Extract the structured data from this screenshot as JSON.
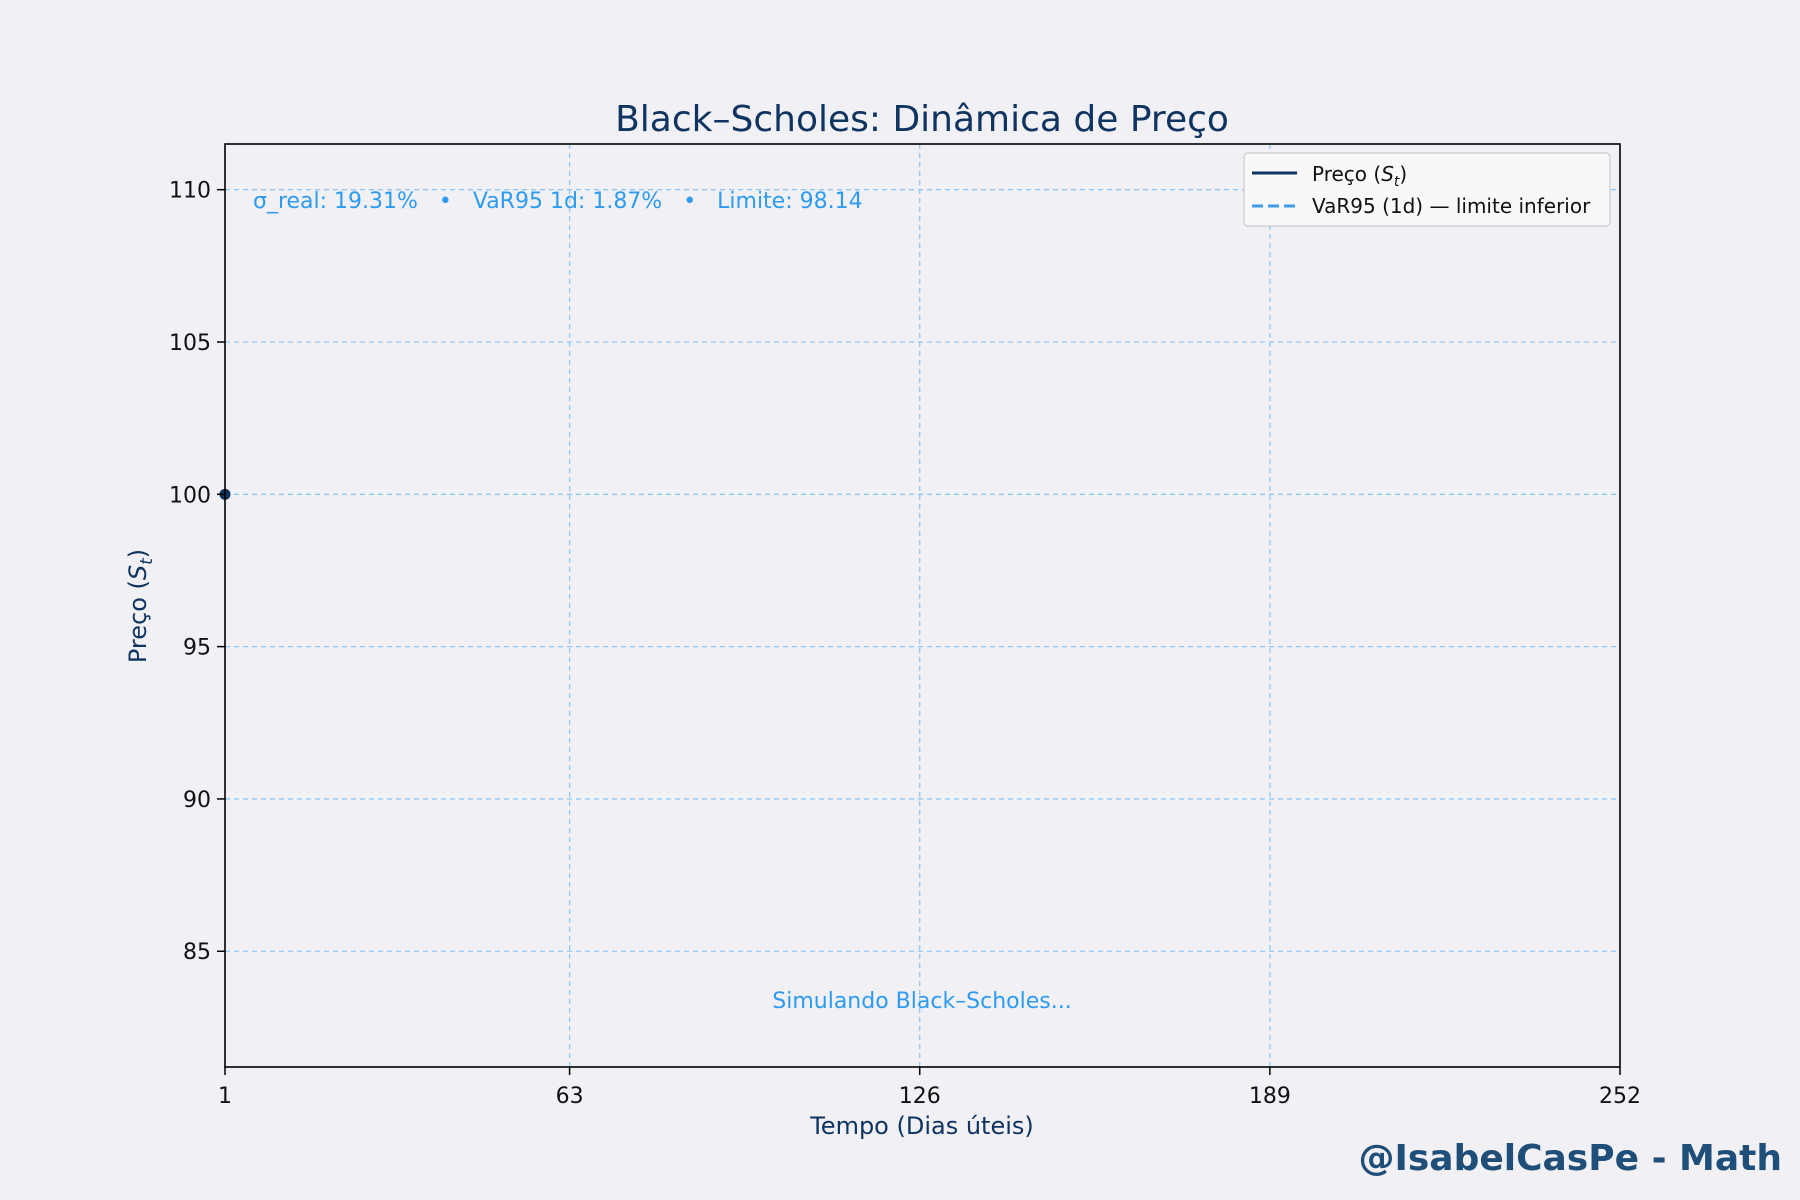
{
  "chart_data": {
    "type": "line",
    "title": "Black–Scholes: Dinâmica de Preço",
    "xlabel": "Tempo (Dias úteis)",
    "ylabel": "Preço (St)",
    "xlim": [
      1,
      252
    ],
    "ylim": [
      81.2,
      111.5
    ],
    "x_ticks": [
      1,
      63,
      126,
      189,
      252
    ],
    "y_ticks": [
      85,
      90,
      95,
      100,
      105,
      110
    ],
    "grid": true,
    "legend_position": "top-right",
    "series": [
      {
        "name": "Preço (St)",
        "color": "#0f3460",
        "style": "solid",
        "points": [
          [
            1,
            100
          ]
        ]
      },
      {
        "name": "VaR95 (1d) — limite inferior",
        "color": "#3d9be9",
        "style": "dashed",
        "points": []
      }
    ],
    "annotations": {
      "stats": "σ_real: 19.31%   •   VaR95 1d: 1.87%   •   Limite: 98.14",
      "status": "Simulando Black–Scholes..."
    }
  },
  "watermark": "@IsabelCasPe - Math",
  "colors": {
    "background": "#f0f0f5",
    "title": "#0f3460",
    "accent": "#2e9bf0",
    "grid": "#90c8f5",
    "watermark": "#1f4e79"
  }
}
